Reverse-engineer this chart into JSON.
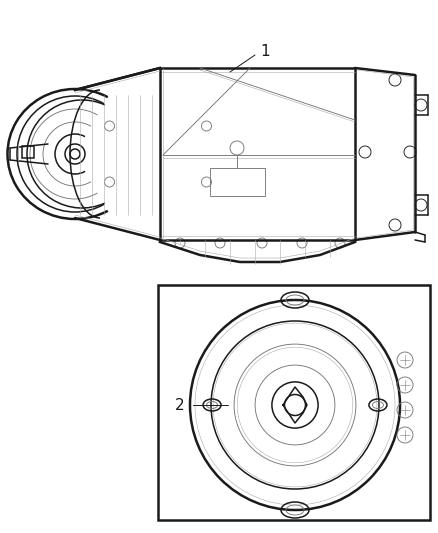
{
  "bg_color": "#ffffff",
  "line_color": "#1a1a1a",
  "line_color_gray": "#777777",
  "line_color_light": "#aaaaaa",
  "label1_text": "1",
  "label2_text": "2",
  "fig_width": 4.38,
  "fig_height": 5.33,
  "dpi": 100
}
